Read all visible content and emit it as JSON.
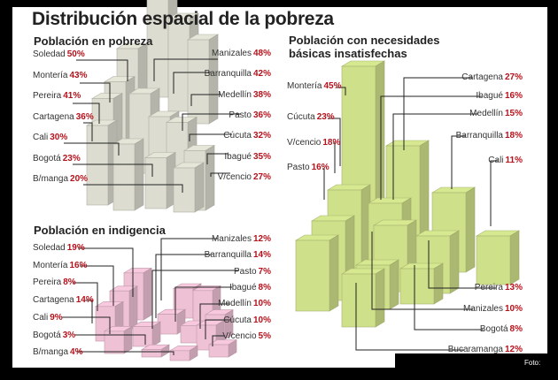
{
  "title": "Distribución espacial de la pobreza",
  "photo_credit": "Foto:",
  "colors": {
    "red": "#b5121b",
    "grey_box": "#dcdcd0",
    "pink_box": "#eec1d5",
    "green_box": "#cfe08a"
  },
  "chart_data": [
    {
      "type": "bar",
      "title": "Población en pobreza",
      "unit": "%",
      "categories": [
        "Soledad",
        "Montería",
        "Pereira",
        "Cartagena",
        "Cali",
        "Bogotá",
        "B/manga",
        "Manizales",
        "Barranquilla",
        "Medellín",
        "Pasto",
        "Cúcuta",
        "Ibagué",
        "V/cencio"
      ],
      "values": [
        50,
        43,
        41,
        36,
        30,
        23,
        20,
        48,
        42,
        38,
        36,
        32,
        35,
        27
      ]
    },
    {
      "type": "bar",
      "title": "Población en indigencia",
      "unit": "%",
      "categories": [
        "Soledad",
        "Montería",
        "Pereira",
        "Cartagena",
        "Cali",
        "Bogotá",
        "B/manga",
        "Manizales",
        "Barranquilla",
        "Pasto",
        "Ibagué",
        "Medellín",
        "Cúcuta",
        "V/cencio"
      ],
      "values": [
        19,
        16,
        8,
        14,
        9,
        3,
        4,
        12,
        14,
        7,
        8,
        10,
        10,
        5
      ]
    },
    {
      "type": "bar",
      "title": "Población con necesidades básicas insatisfechas",
      "unit": "%",
      "categories": [
        "Montería",
        "Cúcuta",
        "V/cencio",
        "Pasto",
        "Cartagena",
        "Ibagué",
        "Medellín",
        "Barranquilla",
        "Cali",
        "Pereira",
        "Manizales",
        "Bogotá",
        "Bucaramanga"
      ],
      "values": [
        45,
        23,
        18,
        16,
        27,
        16,
        15,
        18,
        11,
        13,
        10,
        8,
        12
      ]
    }
  ],
  "labels": {
    "pobreza": [
      {
        "city": "Soledad",
        "value": "50%"
      },
      {
        "city": "Montería",
        "value": "43%"
      },
      {
        "city": "Pereira",
        "value": "41%"
      },
      {
        "city": "Cartagena",
        "value": "36%"
      },
      {
        "city": "Cali",
        "value": "30%"
      },
      {
        "city": "Bogotá",
        "value": "23%"
      },
      {
        "city": "B/manga",
        "value": "20%"
      },
      {
        "city": "Manizales",
        "value": "48%"
      },
      {
        "city": "Barranquilla",
        "value": "42%"
      },
      {
        "city": "Medellín",
        "value": "38%"
      },
      {
        "city": "Pasto",
        "value": "36%"
      },
      {
        "city": "Cúcuta",
        "value": "32%"
      },
      {
        "city": "Ibagué",
        "value": "35%"
      },
      {
        "city": "V/cencio",
        "value": "27%"
      }
    ],
    "indigencia": [
      {
        "city": "Soledad",
        "value": "19%"
      },
      {
        "city": "Montería",
        "value": "16%"
      },
      {
        "city": "Pereira",
        "value": "8%"
      },
      {
        "city": "Cartagena",
        "value": "14%"
      },
      {
        "city": "Cali",
        "value": "9%"
      },
      {
        "city": "Bogotá",
        "value": "3%"
      },
      {
        "city": "B/manga",
        "value": "4%"
      },
      {
        "city": "Manizales",
        "value": "12%"
      },
      {
        "city": "Barranquilla",
        "value": "14%"
      },
      {
        "city": "Pasto",
        "value": "7%"
      },
      {
        "city": "Ibagué",
        "value": "8%"
      },
      {
        "city": "Medellín",
        "value": "10%"
      },
      {
        "city": "Cúcuta",
        "value": "10%"
      },
      {
        "city": "V/cencio",
        "value": "5%"
      }
    ],
    "nbi": [
      {
        "city": "Montería",
        "value": "45%"
      },
      {
        "city": "Cúcuta",
        "value": "23%"
      },
      {
        "city": "V/cencio",
        "value": "18%"
      },
      {
        "city": "Pasto",
        "value": "16%"
      },
      {
        "city": "Cartagena",
        "value": "27%"
      },
      {
        "city": "Ibagué",
        "value": "16%"
      },
      {
        "city": "Medellín",
        "value": "15%"
      },
      {
        "city": "Barranquilla",
        "value": "18%"
      },
      {
        "city": "Cali",
        "value": "11%"
      },
      {
        "city": "Pereira",
        "value": "13%"
      },
      {
        "city": "Manizales",
        "value": "10%"
      },
      {
        "city": "Bogotá",
        "value": "8%"
      },
      {
        "city": "Bucaramanga",
        "value": "12%"
      }
    ]
  }
}
